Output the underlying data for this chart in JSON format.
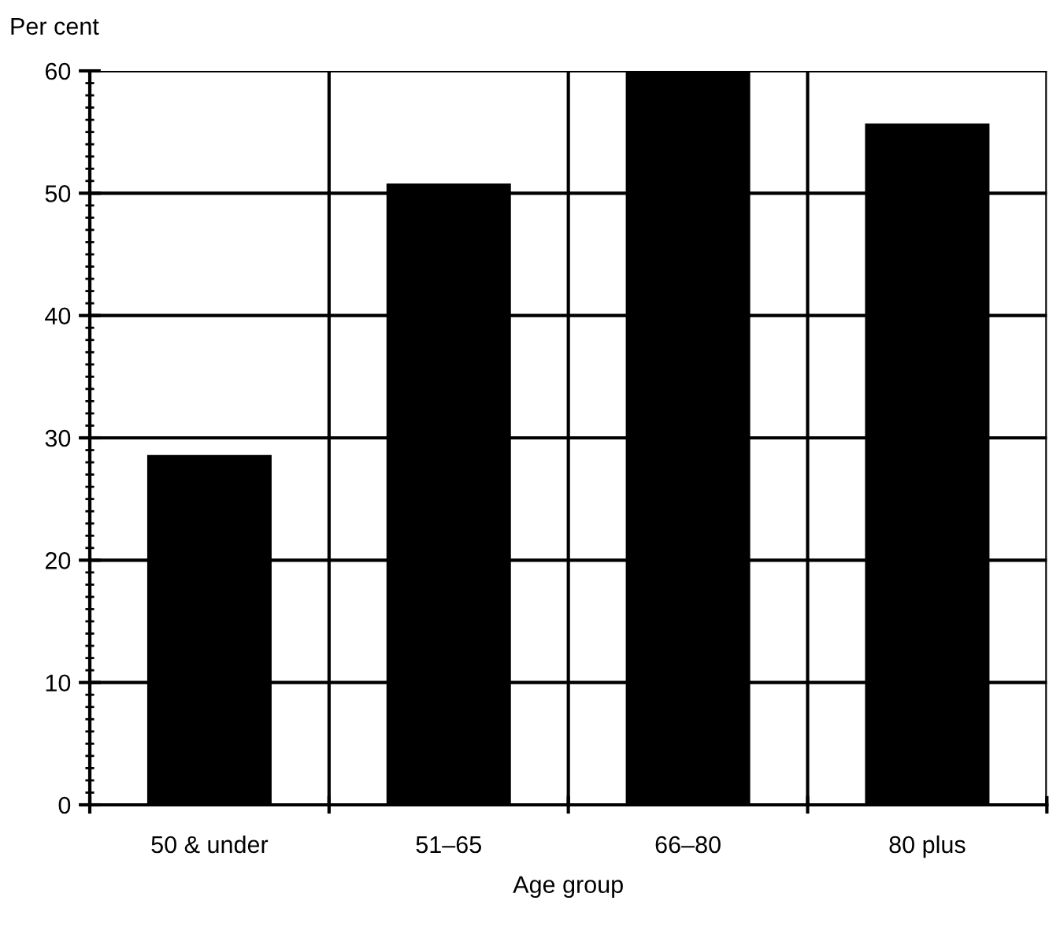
{
  "chart_data": {
    "type": "bar",
    "ylabel": "Per cent",
    "xlabel": "Age group",
    "categories": [
      "50 & under",
      "51–65",
      "66–80",
      "80 plus"
    ],
    "values": [
      28.6,
      50.8,
      60,
      55.7
    ],
    "color": "#000000",
    "ylim": [
      0,
      60
    ],
    "yticks": [
      0,
      10,
      20,
      30,
      40,
      50,
      60
    ],
    "grid": true
  }
}
